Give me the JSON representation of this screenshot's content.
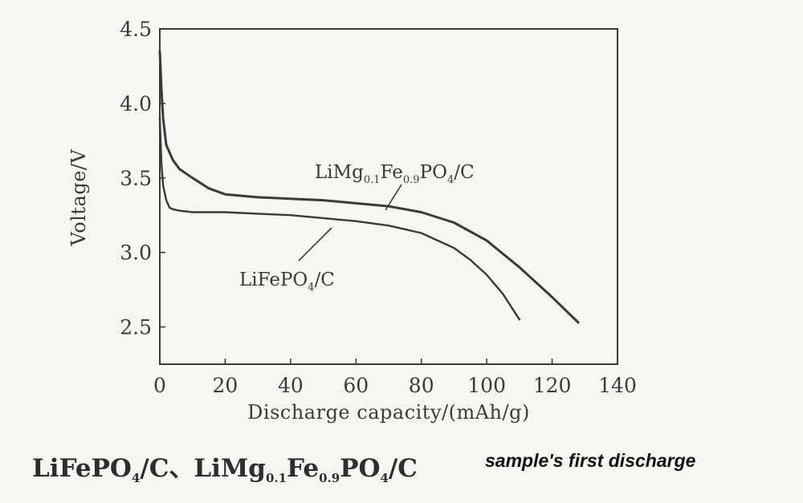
{
  "chart_data": {
    "type": "line",
    "xlabel": "Discharge capacity/(mAh/g)",
    "ylabel": "Voltage/V",
    "xlim": [
      0,
      140
    ],
    "ylim": [
      2.25,
      4.5
    ],
    "x_ticks": [
      "0",
      "20",
      "40",
      "60",
      "80",
      "100",
      "120",
      "140"
    ],
    "y_ticks": [
      "2.5",
      "3.0",
      "3.5",
      "4.0",
      "4.5"
    ],
    "grid": false,
    "series": [
      {
        "name": "LiMg0.1Fe0.9PO4/C",
        "x": [
          0,
          0.5,
          1,
          2,
          4,
          6,
          10,
          15,
          20,
          30,
          40,
          50,
          60,
          70,
          80,
          90,
          100,
          110,
          120,
          128
        ],
        "y": [
          4.35,
          4.1,
          3.9,
          3.72,
          3.62,
          3.56,
          3.5,
          3.43,
          3.39,
          3.37,
          3.36,
          3.35,
          3.33,
          3.31,
          3.27,
          3.2,
          3.08,
          2.9,
          2.7,
          2.53
        ],
        "label_parts": {
          "main": "LiMg",
          "s1": "0.1",
          "mid": "Fe",
          "s2": "0.9",
          "tail": "PO",
          "s3": "4",
          "end": "/C"
        }
      },
      {
        "name": "LiFePO4/C",
        "x": [
          0,
          0.5,
          1,
          2,
          3,
          4,
          6,
          10,
          20,
          30,
          40,
          50,
          60,
          70,
          80,
          90,
          95,
          100,
          105,
          110
        ],
        "y": [
          3.9,
          3.6,
          3.45,
          3.35,
          3.3,
          3.29,
          3.28,
          3.27,
          3.27,
          3.26,
          3.25,
          3.23,
          3.21,
          3.18,
          3.13,
          3.03,
          2.95,
          2.85,
          2.72,
          2.55
        ],
        "label_parts": {
          "main": "LiFePO",
          "s1": "4",
          "end": "/C"
        }
      }
    ]
  },
  "caption": {
    "part1": "LiFePO",
    "sub1": "4",
    "part2": "/C、LiMg",
    "sub2": "0.1",
    "part3": "Fe",
    "sub3": "0.9",
    "part4": "PO",
    "sub4": "4",
    "part5": "/C",
    "note": "sample's first discharge"
  }
}
